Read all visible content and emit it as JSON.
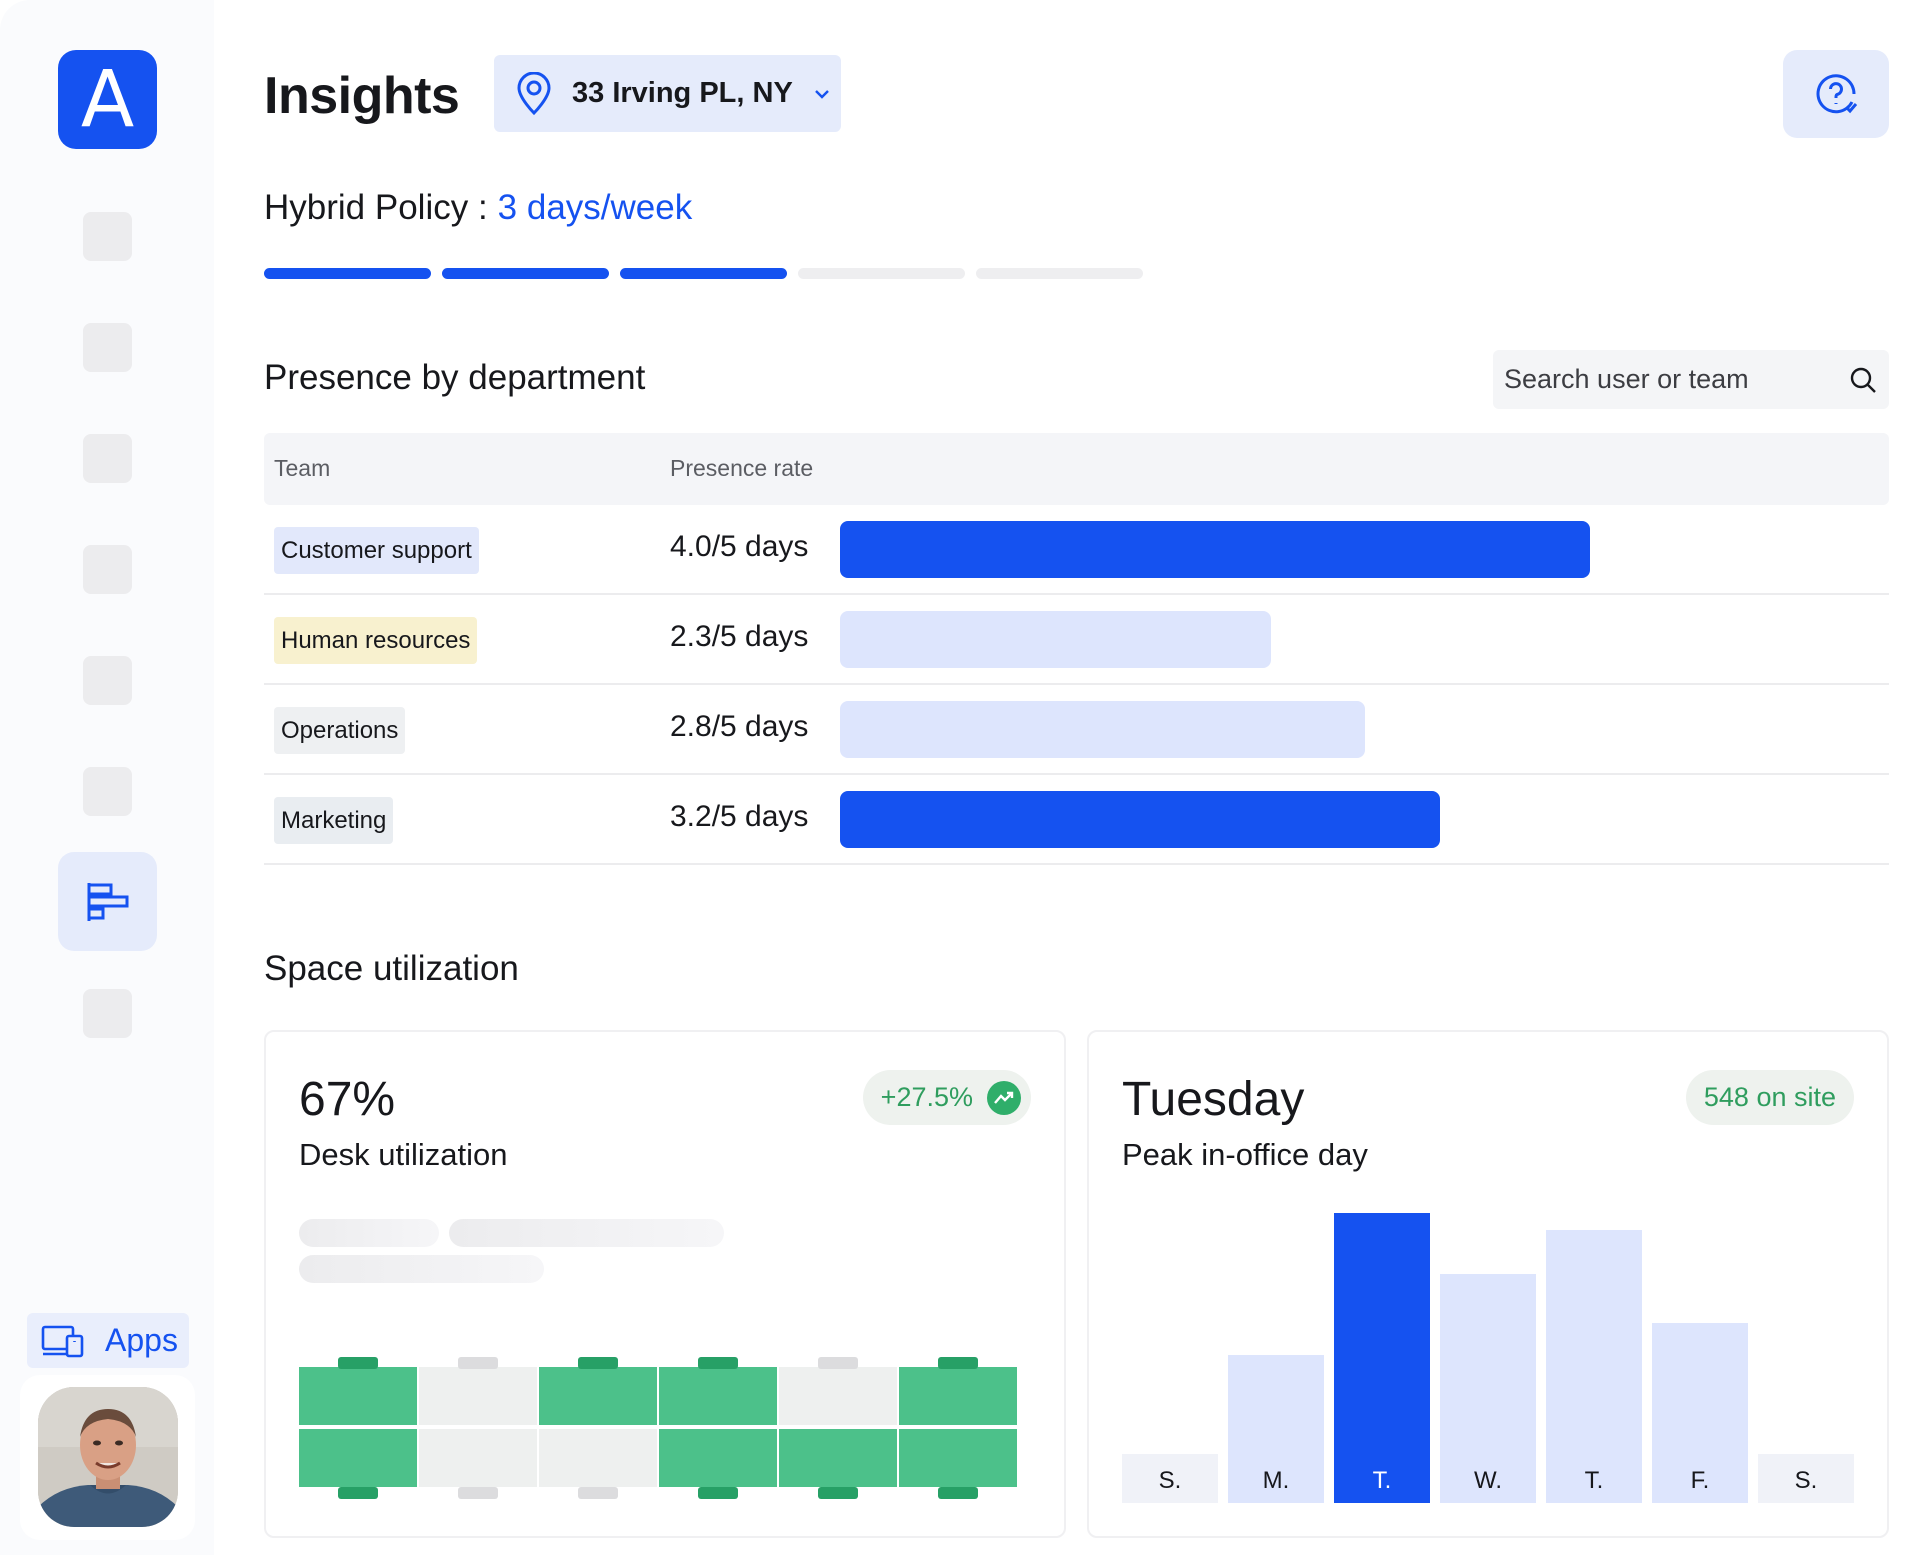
{
  "app": {
    "logo_letter": "A",
    "brand_color": "#1552f0"
  },
  "sidebar": {
    "apps_label": "Apps",
    "active_item": "insights",
    "avatar": "user-avatar"
  },
  "header": {
    "title": "Insights",
    "location": "33 Irving PL, NY"
  },
  "policy": {
    "label": "Hybrid Policy :",
    "value": "3 days/week",
    "days_required": 3,
    "days_total": 5
  },
  "presence": {
    "title": "Presence by department",
    "search_placeholder": "Search user or team",
    "columns": [
      "Team",
      "Presence rate"
    ],
    "rows": [
      {
        "team": "Customer support",
        "rate_label": "4.0/5 days",
        "rate": 4.0,
        "tag_color": "#e2e8fb",
        "bar_color": "#1552f0"
      },
      {
        "team": "Human resources",
        "rate_label": "2.3/5 days",
        "rate": 2.3,
        "tag_color": "#f8f1cf",
        "bar_color": "#dde5fd"
      },
      {
        "team": "Operations",
        "rate_label": "2.8/5 days",
        "rate": 2.8,
        "tag_color": "#eef0f2",
        "bar_color": "#dde5fd"
      },
      {
        "team": "Marketing",
        "rate_label": "3.2/5 days",
        "rate": 3.2,
        "tag_color": "#e9edf1",
        "bar_color": "#1552f0"
      }
    ],
    "max_days": 5
  },
  "space": {
    "title": "Space utilization",
    "desk_card": {
      "value": "67%",
      "label": "Desk utilization",
      "change": "+27.5%",
      "desks_top": [
        true,
        false,
        true,
        true,
        false,
        true
      ],
      "desks_bottom": [
        true,
        false,
        false,
        true,
        true,
        true
      ]
    },
    "peak_card": {
      "value": "Tuesday",
      "label": "Peak in-office day",
      "badge": "548 on site",
      "chart_data": {
        "type": "bar",
        "categories": [
          "S.",
          "M.",
          "T.",
          "W.",
          "T.",
          "F.",
          "S."
        ],
        "values": [
          0.17,
          0.51,
          1.0,
          0.79,
          0.94,
          0.62,
          0.17
        ],
        "highlight_index": 2
      }
    }
  },
  "colors": {
    "accent": "#1552f0",
    "accent_light": "#dde5fd",
    "green": "#4cc18a",
    "green_dark": "#27a066",
    "gray_desk": "#eef0ef"
  }
}
